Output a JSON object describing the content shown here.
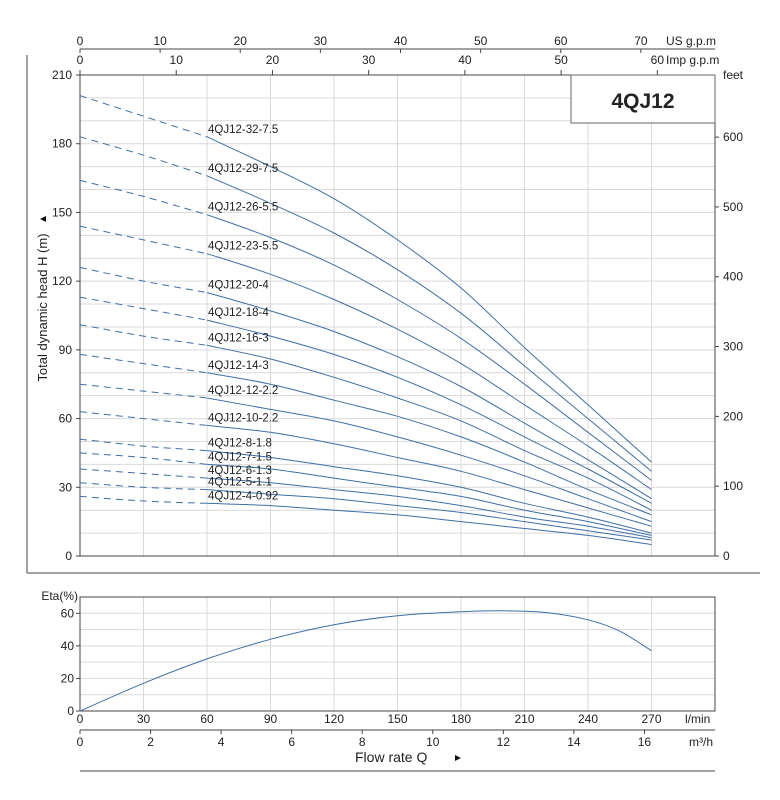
{
  "chart_data": [
    {
      "type": "line",
      "model": "4QJ12",
      "ylabel": "Total dynamic head H (m)",
      "x_units": {
        "us": "US g.p.m",
        "imp": "Imp g.p.m",
        "lmin": "l/min"
      },
      "y_right_unit": "feet",
      "xlim_lmin": [
        0,
        300
      ],
      "ylim": [
        0,
        210
      ],
      "x_ticks_us": [
        0,
        10,
        20,
        30,
        40,
        50,
        60,
        70
      ],
      "x_ticks_imp": [
        0,
        10,
        20,
        30,
        40,
        50,
        60
      ],
      "y_ticks": [
        0,
        30,
        60,
        90,
        120,
        150,
        180,
        210
      ],
      "y_ticks_feet": [
        0,
        100,
        200,
        300,
        400,
        500,
        600
      ],
      "dashed_to_lmin": 60,
      "x": [
        0,
        30,
        60,
        90,
        120,
        150,
        180,
        210,
        240,
        270
      ],
      "series": [
        {
          "name": "4QJ12-32-7.5",
          "values": [
            201,
            192,
            183,
            170,
            156,
            138,
            117,
            91,
            66,
            41
          ]
        },
        {
          "name": "4QJ12-29-7.5",
          "values": [
            183,
            175,
            166,
            154,
            141,
            125,
            106,
            83,
            60,
            37
          ]
        },
        {
          "name": "4QJ12-26-5.5",
          "values": [
            164,
            157,
            149,
            139,
            127,
            112,
            95,
            75,
            54,
            33
          ]
        },
        {
          "name": "4QJ12-23-5.5",
          "values": [
            144,
            138,
            132,
            123,
            112,
            99,
            84,
            66,
            48,
            29
          ]
        },
        {
          "name": "4QJ12-20-4",
          "values": [
            126,
            120,
            115,
            107,
            98,
            87,
            74,
            58,
            42,
            25
          ]
        },
        {
          "name": "4QJ12-18-4",
          "values": [
            113,
            108,
            103,
            96,
            88,
            78,
            66,
            52,
            38,
            23
          ]
        },
        {
          "name": "4QJ12-16-3",
          "values": [
            101,
            96,
            92,
            86,
            78,
            69,
            59,
            46,
            34,
            20
          ]
        },
        {
          "name": "4QJ12-14-3",
          "values": [
            88,
            84,
            80,
            75,
            68,
            61,
            52,
            41,
            29,
            18
          ]
        },
        {
          "name": "4QJ12-12-2.2",
          "values": [
            75,
            72,
            69,
            64,
            59,
            52,
            44,
            35,
            25,
            15
          ]
        },
        {
          "name": "4QJ12-10-2.2",
          "values": [
            63,
            60,
            57,
            54,
            49,
            43,
            37,
            29,
            21,
            13
          ]
        },
        {
          "name": "4QJ12-8-1.8",
          "values": [
            51,
            48,
            46,
            43,
            39,
            35,
            30,
            23,
            17,
            10
          ]
        },
        {
          "name": "4QJ12-7-1.5",
          "values": [
            45,
            43,
            40,
            38,
            34,
            30,
            26,
            20,
            15,
            9
          ]
        },
        {
          "name": "4QJ12-6-1.3",
          "values": [
            38,
            36,
            34,
            32,
            29,
            26,
            22,
            17,
            13,
            8
          ]
        },
        {
          "name": "4QJ12-5-1.1",
          "values": [
            32,
            30,
            29,
            27,
            25,
            22,
            19,
            15,
            11,
            7
          ]
        },
        {
          "name": "4QJ12-4-0.92",
          "values": [
            26,
            24,
            23,
            22,
            20,
            18,
            15,
            12,
            9,
            5
          ]
        }
      ]
    },
    {
      "type": "line",
      "ylabel": "Eta(%)",
      "xlabel": "Flow rate Q",
      "x_units": {
        "lmin": "l/min",
        "m3h": "m³/h"
      },
      "xlim_lmin": [
        0,
        300
      ],
      "ylim": [
        0,
        70
      ],
      "x_ticks_lmin": [
        0,
        30,
        60,
        90,
        120,
        150,
        180,
        210,
        240,
        270
      ],
      "x_ticks_m3h": [
        0,
        2,
        4,
        6,
        8,
        10,
        12,
        14,
        16
      ],
      "y_ticks": [
        0,
        20,
        40,
        60
      ],
      "x": [
        0,
        30,
        60,
        90,
        120,
        150,
        180,
        200,
        220,
        240,
        255,
        270
      ],
      "values": [
        0,
        17,
        32,
        44,
        53,
        58.5,
        61,
        61.5,
        60.5,
        56,
        49,
        37
      ]
    }
  ]
}
